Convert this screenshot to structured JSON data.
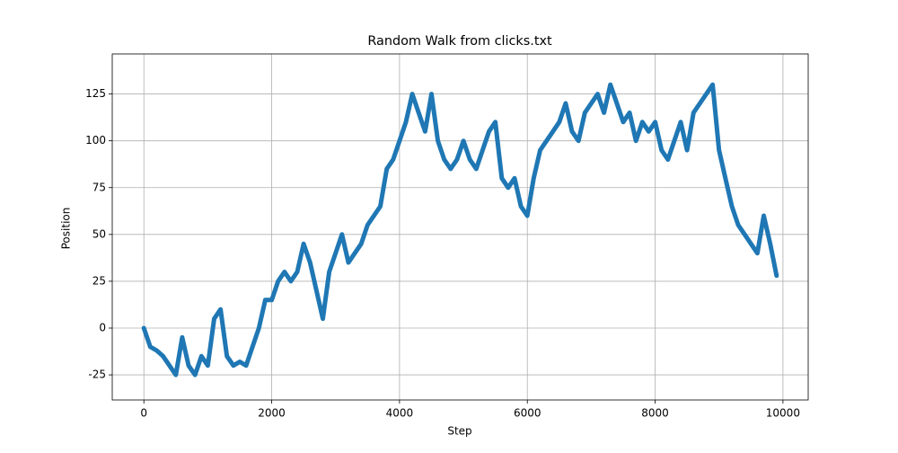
{
  "chart_data": {
    "type": "line",
    "title": "Random Walk from clicks.txt",
    "x_label": "Step",
    "y_label": "Position",
    "x": [
      0,
      100,
      200,
      300,
      400,
      500,
      600,
      700,
      800,
      900,
      1000,
      1100,
      1200,
      1300,
      1400,
      1500,
      1600,
      1700,
      1800,
      1900,
      2000,
      2100,
      2200,
      2300,
      2400,
      2500,
      2600,
      2700,
      2800,
      2900,
      3000,
      3100,
      3200,
      3300,
      3400,
      3500,
      3600,
      3700,
      3800,
      3900,
      4000,
      4100,
      4200,
      4300,
      4400,
      4500,
      4600,
      4700,
      4800,
      4900,
      5000,
      5100,
      5200,
      5300,
      5400,
      5500,
      5600,
      5700,
      5800,
      5900,
      6000,
      6100,
      6200,
      6300,
      6400,
      6500,
      6600,
      6700,
      6800,
      6900,
      7000,
      7100,
      7200,
      7300,
      7400,
      7500,
      7600,
      7700,
      7800,
      7900,
      8000,
      8100,
      8200,
      8300,
      8400,
      8500,
      8600,
      8700,
      8800,
      8900,
      9000,
      9100,
      9200,
      9300,
      9400,
      9500,
      9600,
      9700,
      9800,
      9900
    ],
    "series": [
      {
        "color": "#1f77b4",
        "values": [
          0,
          -10,
          -12,
          -15,
          -20,
          -25,
          -5,
          -20,
          -25,
          -15,
          -20,
          5,
          10,
          -15,
          -20,
          -18,
          -20,
          -10,
          0,
          15,
          15,
          25,
          30,
          25,
          30,
          45,
          35,
          20,
          5,
          30,
          40,
          50,
          35,
          40,
          45,
          55,
          60,
          65,
          85,
          90,
          100,
          110,
          125,
          115,
          105,
          125,
          100,
          90,
          85,
          90,
          100,
          90,
          85,
          95,
          105,
          110,
          80,
          75,
          80,
          65,
          60,
          80,
          95,
          100,
          105,
          110,
          120,
          105,
          100,
          115,
          120,
          125,
          115,
          130,
          120,
          110,
          115,
          100,
          110,
          105,
          110,
          95,
          90,
          100,
          110,
          95,
          115,
          120,
          125,
          130,
          95,
          80,
          65,
          55,
          50,
          45,
          40,
          60,
          45,
          28
        ]
      }
    ],
    "xlim": [
      -495,
      10395
    ],
    "ylim": [
      -38.4,
      146.4
    ],
    "xticks": [
      0,
      2000,
      4000,
      6000,
      8000,
      10000
    ],
    "yticks": [
      -25,
      0,
      25,
      50,
      75,
      100,
      125
    ],
    "grid": true
  }
}
